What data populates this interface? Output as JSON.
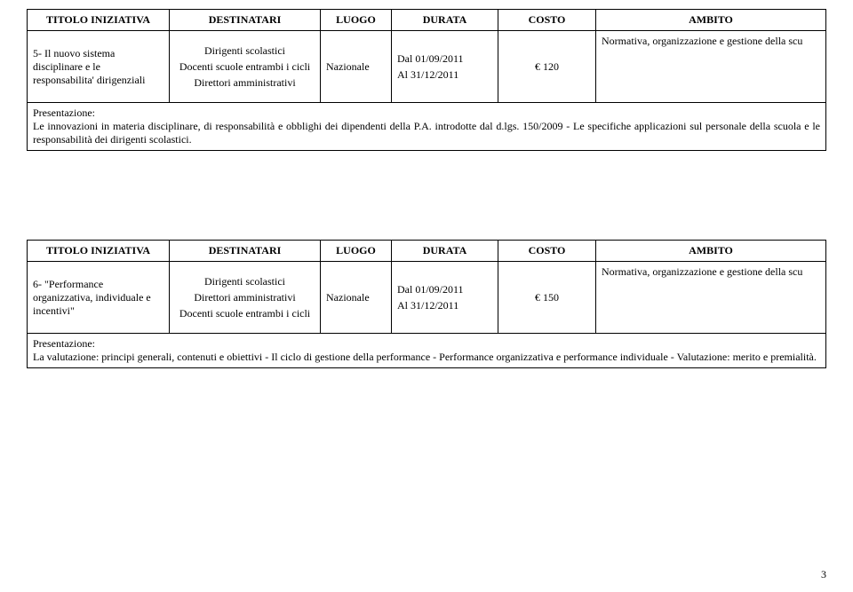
{
  "headers": {
    "title": "TITOLO INIZIATIVA",
    "destinatari": "DESTINATARI",
    "luogo": "LUOGO",
    "durata": "DURATA",
    "costo": "COSTO",
    "ambito": "AMBITO"
  },
  "table5": {
    "title": "5- Il nuovo sistema disciplinare e le responsabilita' dirigenziali",
    "dest1": "Dirigenti scolastici",
    "dest2": "Docenti scuole entrambi i cicli",
    "dest3": "Direttori amministrativi",
    "luogo": "Nazionale",
    "durata_dal": "Dal  01/09/2011",
    "durata_al": "Al    31/12/2011",
    "costo": "€ 120",
    "ambito": "Normativa, organizzazione e gestione della scu",
    "desc_label": "Presentazione:",
    "desc": "Le innovazioni in materia disciplinare, di responsabilità e obblighi dei dipendenti della P.A. introdotte dal d.lgs. 150/2009 - Le specifiche applicazioni sul personale della scuola e le responsabilità dei dirigenti scolastici."
  },
  "table6": {
    "title": "6- \"Performance organizzativa, individuale e incentivi\"",
    "dest1": "Dirigenti scolastici",
    "dest2": "Direttori amministrativi",
    "dest3": "Docenti scuole entrambi i cicli",
    "luogo": "Nazionale",
    "durata_dal": "Dal  01/09/2011",
    "durata_al": "Al    31/12/2011",
    "costo": "€ 150",
    "ambito": "Normativa, organizzazione e gestione della scu",
    "desc_label": "Presentazione:",
    "desc": "La valutazione: principi generali, contenuti e obiettivi - Il ciclo di gestione della performance - Performance organizzativa e performance individuale - Valutazione: merito e premialità."
  },
  "page_number": "3"
}
